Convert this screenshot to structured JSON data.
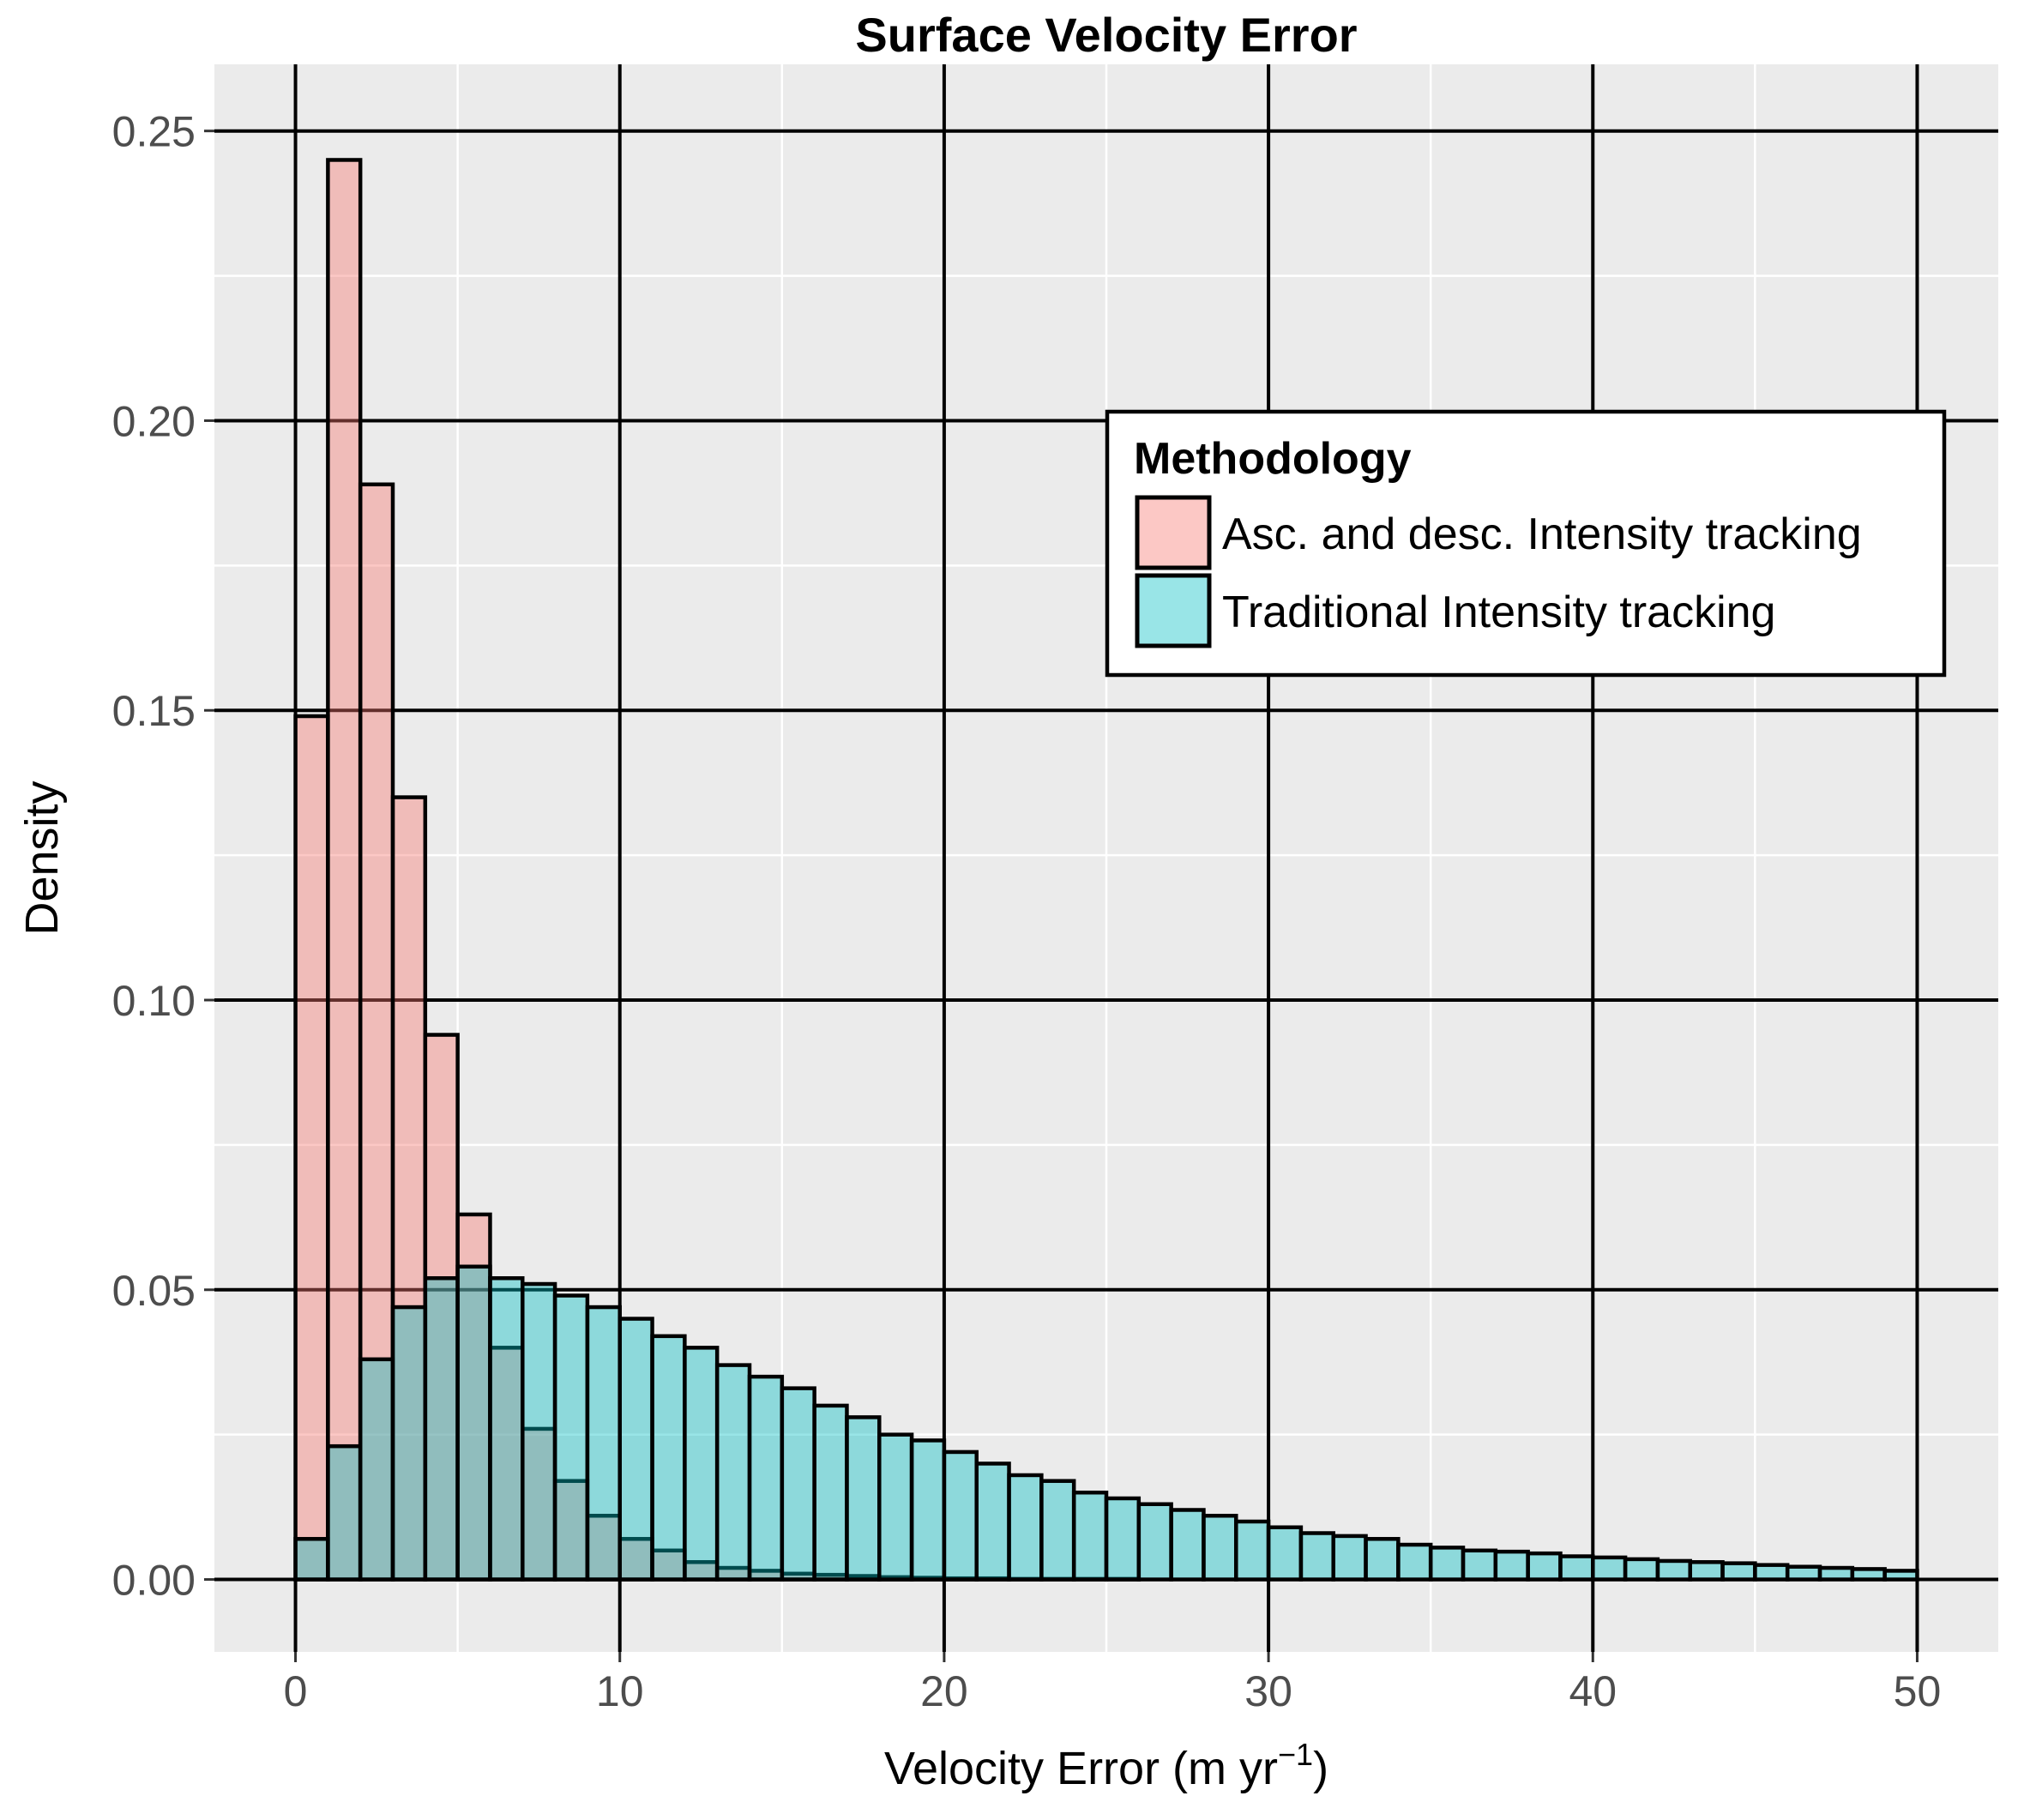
{
  "chart_data": {
    "type": "histogram",
    "title": "Surface Velocity Error",
    "xlabel": "Velocity Error (m yr",
    "xlabel_sup": "−1",
    "xlabel_close": ")",
    "ylabel": "Density",
    "xlim": [
      -2.5,
      52.5
    ],
    "ylim": [
      -0.0125,
      0.2615
    ],
    "xticks": [
      0,
      10,
      20,
      30,
      40,
      50
    ],
    "xtick_labels": [
      "0",
      "10",
      "20",
      "30",
      "40",
      "50"
    ],
    "yticks": [
      0,
      0.05,
      0.1,
      0.15,
      0.2,
      0.25
    ],
    "ytick_labels": [
      "0.00",
      "0.05",
      "0.10",
      "0.15",
      "0.20",
      "0.25"
    ],
    "grid": true,
    "bin_width": 1,
    "bin_starts": [
      0,
      1,
      2,
      3,
      4,
      5,
      6,
      7,
      8,
      9,
      10,
      11,
      12,
      13,
      14,
      15,
      16,
      17,
      18,
      19,
      20,
      21,
      22,
      23,
      24,
      25,
      26,
      27,
      28,
      29,
      30,
      31,
      32,
      33,
      34,
      35,
      36,
      37,
      38,
      39,
      40,
      41,
      42,
      43,
      44,
      45,
      46,
      47,
      48,
      49
    ],
    "legend": {
      "title": "Methodology",
      "placement": "top-right"
    },
    "series": [
      {
        "name": "Asc. and desc. Intensity tracking",
        "color": "#F8766D",
        "values": [
          0.149,
          0.245,
          0.189,
          0.135,
          0.094,
          0.063,
          0.04,
          0.026,
          0.017,
          0.011,
          0.007,
          0.005,
          0.003,
          0.002,
          0.0015,
          0.001,
          0.0008,
          0.0006,
          0.0004,
          0.0003,
          0.0002,
          0.0002,
          0.0001,
          0.0001,
          0.0001,
          0.0001,
          0,
          0,
          0,
          0,
          0,
          0,
          0,
          0,
          0,
          0,
          0,
          0,
          0,
          0,
          0,
          0,
          0,
          0,
          0,
          0,
          0,
          0,
          0,
          0
        ]
      },
      {
        "name": "Traditional Intensity tracking",
        "color": "#00BFC4",
        "values": [
          0.007,
          0.023,
          0.038,
          0.047,
          0.052,
          0.054,
          0.052,
          0.051,
          0.049,
          0.047,
          0.045,
          0.042,
          0.04,
          0.037,
          0.035,
          0.033,
          0.03,
          0.028,
          0.025,
          0.024,
          0.022,
          0.02,
          0.018,
          0.017,
          0.015,
          0.014,
          0.013,
          0.012,
          0.011,
          0.01,
          0.009,
          0.008,
          0.0075,
          0.007,
          0.006,
          0.0055,
          0.005,
          0.0048,
          0.0045,
          0.004,
          0.0038,
          0.0035,
          0.0032,
          0.003,
          0.0028,
          0.0025,
          0.0022,
          0.002,
          0.0018,
          0.0015
        ]
      }
    ]
  }
}
